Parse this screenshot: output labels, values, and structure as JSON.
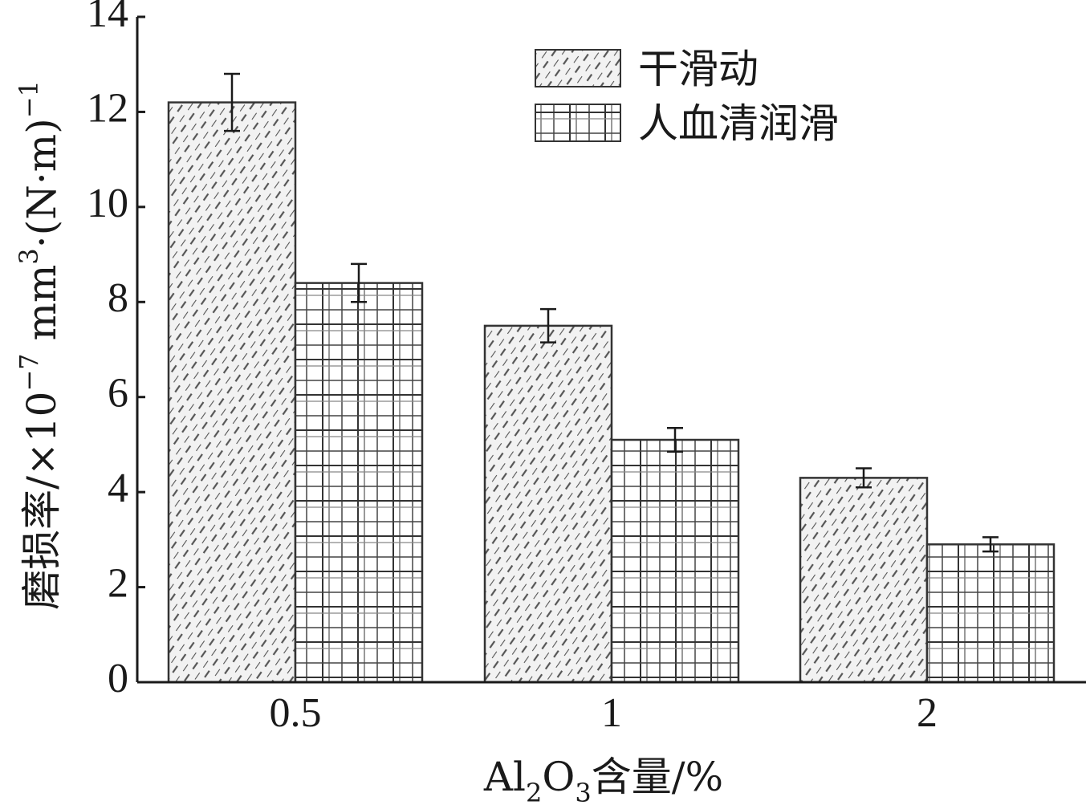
{
  "chart_data": {
    "type": "bar",
    "categories": [
      "0.5",
      "1",
      "2"
    ],
    "series": [
      {
        "name": "干滑动",
        "values": [
          12.2,
          7.5,
          4.3
        ],
        "errors": [
          0.6,
          0.35,
          0.2
        ],
        "pattern": "diagonal-hatch"
      },
      {
        "name": "人血清润滑",
        "values": [
          8.4,
          5.1,
          2.9
        ],
        "errors": [
          0.4,
          0.25,
          0.15
        ],
        "pattern": "grid-hatch"
      }
    ],
    "ylim": [
      0,
      14
    ],
    "yticks": [
      "0",
      "2",
      "4",
      "6",
      "8",
      "10",
      "12",
      "14"
    ],
    "ytick_values": [
      0,
      2,
      4,
      6,
      8,
      10,
      12,
      14
    ],
    "xlabel": "Al2O3含量/%",
    "ylabel": "磨损率/×10−7 mm3·(N·m)−1",
    "legend_position": "top-right",
    "grid": false
  }
}
